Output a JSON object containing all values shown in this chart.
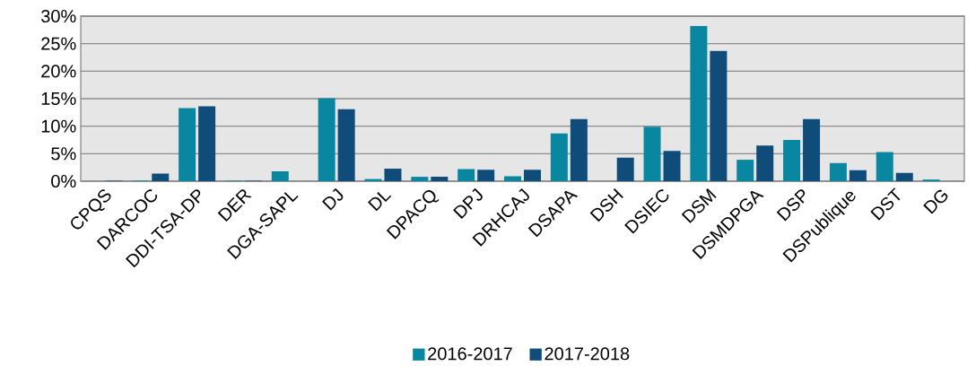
{
  "chart_data": {
    "type": "bar",
    "categories": [
      "CPQS",
      "DARCOC",
      "DDI-TSA-DP",
      "DER",
      "DGA-SAPL",
      "DJ",
      "DL",
      "DPACQ",
      "DPJ",
      "DRHCAJ",
      "DSAPA",
      "DSH",
      "DSIEC",
      "DSM",
      "DSMDPGA",
      "DSP",
      "DSPublique",
      "DST",
      "DG"
    ],
    "series": [
      {
        "name": "2016-2017",
        "color": "#0a87a0",
        "values": [
          0,
          0.1,
          13.3,
          0.1,
          1.8,
          15.1,
          0.4,
          0.8,
          2.2,
          0.9,
          8.7,
          0,
          9.9,
          28.2,
          3.9,
          7.5,
          3.3,
          5.3,
          0.3
        ]
      },
      {
        "name": "2017-2018",
        "color": "#0f4c7a",
        "values": [
          0.1,
          1.4,
          13.6,
          0.1,
          0,
          13.1,
          2.3,
          0.8,
          2.1,
          2.1,
          11.3,
          4.3,
          5.5,
          23.7,
          6.5,
          11.3,
          2.0,
          1.5,
          0
        ]
      }
    ],
    "ylim": [
      0,
      30
    ],
    "yticks": [
      {
        "value": 0,
        "label": "0%"
      },
      {
        "value": 5,
        "label": "5%"
      },
      {
        "value": 10,
        "label": "10%"
      },
      {
        "value": 15,
        "label": "15%"
      },
      {
        "value": 20,
        "label": "20%"
      },
      {
        "value": 25,
        "label": "25%"
      },
      {
        "value": 30,
        "label": "30%"
      }
    ],
    "grid": "y",
    "legend": "bottom"
  }
}
